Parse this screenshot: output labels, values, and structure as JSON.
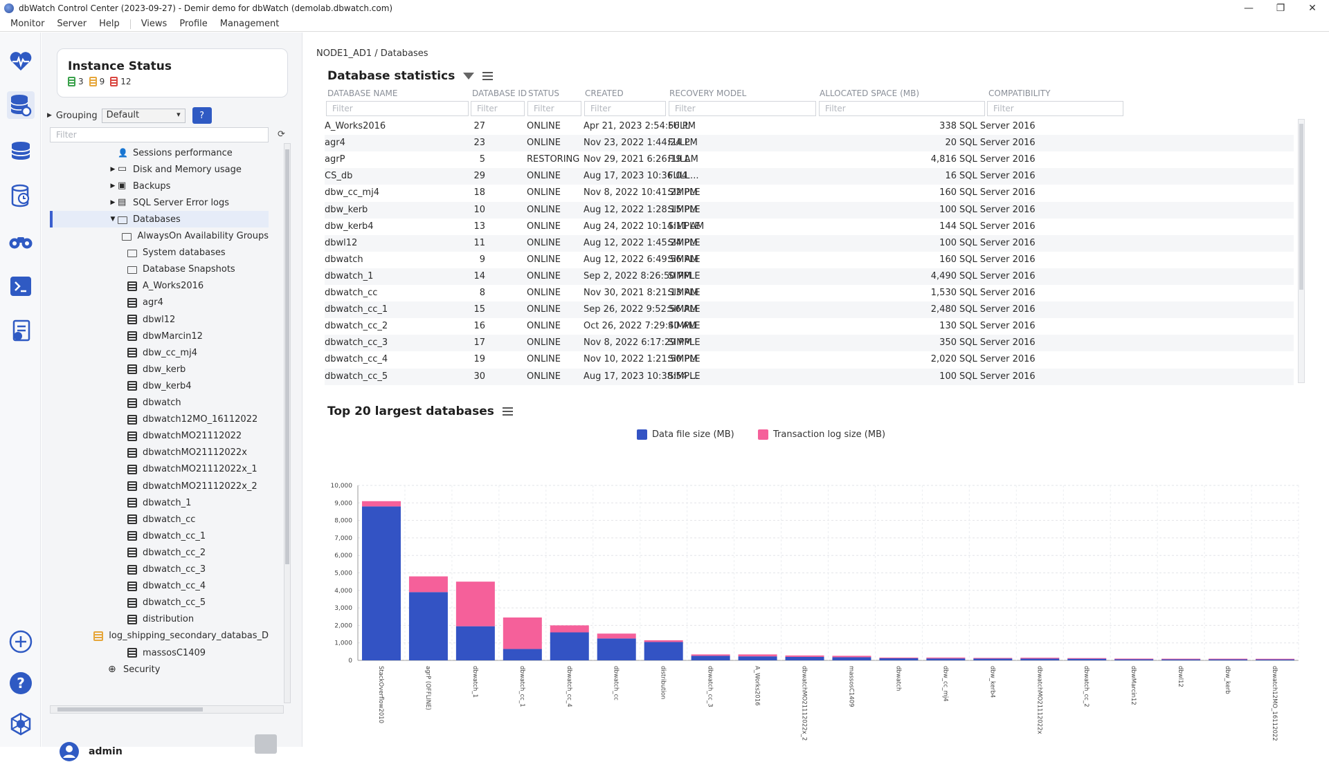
{
  "window": {
    "title": "dbWatch Control Center  (2023-09-27) - Demir demo for dbWatch (demolab.dbwatch.com)",
    "controls": [
      "—",
      "❐",
      "✕"
    ]
  },
  "menu": {
    "left": [
      "Monitor",
      "Server",
      "Help"
    ],
    "right": [
      "Views",
      "Profile",
      "Management"
    ]
  },
  "rail": [
    {
      "name": "monitor-heartbeat-icon",
      "active": false
    },
    {
      "name": "database-settings-icon",
      "active": true
    },
    {
      "name": "database-stack-icon",
      "active": false
    },
    {
      "name": "database-clock-icon",
      "active": false
    },
    {
      "name": "binoculars-icon",
      "active": false
    },
    {
      "name": "terminal-icon",
      "active": false
    },
    {
      "name": "report-icon",
      "active": false
    },
    {
      "name": "add-icon",
      "active": false
    },
    {
      "name": "help-icon",
      "active": false
    },
    {
      "name": "settings-hex-icon",
      "active": false
    }
  ],
  "instance_status": {
    "title": "Instance Status",
    "counts": [
      {
        "value": "3",
        "color": "#3aa14b"
      },
      {
        "value": "9",
        "color": "#e6a63a"
      },
      {
        "value": "12",
        "color": "#d9453f"
      }
    ]
  },
  "grouping": {
    "label": "Grouping",
    "value": "Default",
    "help": "?"
  },
  "tree_filter": {
    "placeholder": "Filter"
  },
  "tree": [
    {
      "label": "Sessions performance",
      "icon": "user",
      "indent": 1,
      "arrow": ""
    },
    {
      "label": "Disk and Memory usage",
      "icon": "disk",
      "indent": 1,
      "arrow": "▶"
    },
    {
      "label": "Backups",
      "icon": "backup",
      "indent": 1,
      "arrow": "▶"
    },
    {
      "label": "SQL Server Error logs",
      "icon": "log",
      "indent": 1,
      "arrow": "▶"
    },
    {
      "label": "Databases",
      "icon": "folder",
      "indent": 1,
      "arrow": "▼",
      "selected": true
    },
    {
      "label": "AlwaysOn Availability Groups",
      "icon": "folder",
      "indent": 2,
      "arrow": ""
    },
    {
      "label": "System databases",
      "icon": "folder",
      "indent": 2,
      "arrow": ""
    },
    {
      "label": "Database Snapshots",
      "icon": "folder",
      "indent": 2,
      "arrow": ""
    },
    {
      "label": "A_Works2016",
      "icon": "db",
      "indent": 2,
      "arrow": ""
    },
    {
      "label": "agr4",
      "icon": "db",
      "indent": 2,
      "arrow": ""
    },
    {
      "label": "dbwl12",
      "icon": "db",
      "indent": 2,
      "arrow": ""
    },
    {
      "label": "dbwMarcin12",
      "icon": "db",
      "indent": 2,
      "arrow": ""
    },
    {
      "label": "dbw_cc_mj4",
      "icon": "db",
      "indent": 2,
      "arrow": ""
    },
    {
      "label": "dbw_kerb",
      "icon": "db",
      "indent": 2,
      "arrow": ""
    },
    {
      "label": "dbw_kerb4",
      "icon": "db",
      "indent": 2,
      "arrow": ""
    },
    {
      "label": "dbwatch",
      "icon": "db",
      "indent": 2,
      "arrow": ""
    },
    {
      "label": "dbwatch12MO_16112022",
      "icon": "db",
      "indent": 2,
      "arrow": ""
    },
    {
      "label": "dbwatchMO21112022",
      "icon": "db",
      "indent": 2,
      "arrow": ""
    },
    {
      "label": "dbwatchMO21112022x",
      "icon": "db",
      "indent": 2,
      "arrow": ""
    },
    {
      "label": "dbwatchMO21112022x_1",
      "icon": "db",
      "indent": 2,
      "arrow": ""
    },
    {
      "label": "dbwatchMO21112022x_2",
      "icon": "db",
      "indent": 2,
      "arrow": ""
    },
    {
      "label": "dbwatch_1",
      "icon": "db",
      "indent": 2,
      "arrow": ""
    },
    {
      "label": "dbwatch_cc",
      "icon": "db",
      "indent": 2,
      "arrow": ""
    },
    {
      "label": "dbwatch_cc_1",
      "icon": "db",
      "indent": 2,
      "arrow": ""
    },
    {
      "label": "dbwatch_cc_2",
      "icon": "db",
      "indent": 2,
      "arrow": ""
    },
    {
      "label": "dbwatch_cc_3",
      "icon": "db",
      "indent": 2,
      "arrow": ""
    },
    {
      "label": "dbwatch_cc_4",
      "icon": "db",
      "indent": 2,
      "arrow": ""
    },
    {
      "label": "dbwatch_cc_5",
      "icon": "db",
      "indent": 2,
      "arrow": ""
    },
    {
      "label": "distribution",
      "icon": "db",
      "indent": 2,
      "arrow": ""
    },
    {
      "label": "log_shipping_secondary_databas_D",
      "icon": "db-orange",
      "indent": 2,
      "arrow": ""
    },
    {
      "label": "massosC1409",
      "icon": "db",
      "indent": 2,
      "arrow": ""
    },
    {
      "label": "Security",
      "icon": "globe",
      "indent": 0,
      "arrow": ""
    }
  ],
  "user": {
    "name": "admin"
  },
  "breadcrumb": "NODE1_AD1 / Databases",
  "stats": {
    "title": "Database statistics",
    "columns": [
      "DATABASE NAME",
      "DATABASE ID",
      "STATUS",
      "CREATED",
      "RECOVERY MODEL",
      "ALLOCATED SPACE (MB)",
      "COMPATIBILITY"
    ],
    "filter_placeholder": "Filter",
    "rows": [
      [
        "A_Works2016",
        "27",
        "ONLINE",
        "Apr 21, 2023 2:54:56 PM",
        "FULL",
        "338",
        "SQL Server 2016"
      ],
      [
        "agr4",
        "23",
        "ONLINE",
        "Nov 23, 2022 1:44:24 PM",
        "FULL",
        "20",
        "SQL Server 2016"
      ],
      [
        "agrP",
        "5",
        "RESTORING",
        "Nov 29, 2021 6:26:19 AM",
        "FULL",
        "4,816",
        "SQL Server 2016"
      ],
      [
        "CS_db",
        "29",
        "ONLINE",
        "Aug 17, 2023 10:36:04 ...",
        "FULL",
        "16",
        "SQL Server 2016"
      ],
      [
        "dbw_cc_mj4",
        "18",
        "ONLINE",
        "Nov 8, 2022 10:41:22 PM",
        "SIMPLE",
        "160",
        "SQL Server 2016"
      ],
      [
        "dbw_kerb",
        "10",
        "ONLINE",
        "Aug 12, 2022 1:28:15 PM",
        "SIMPLE",
        "100",
        "SQL Server 2016"
      ],
      [
        "dbw_kerb4",
        "13",
        "ONLINE",
        "Aug 24, 2022 10:14:11 AM",
        "SIMPLE",
        "144",
        "SQL Server 2016"
      ],
      [
        "dbwl12",
        "11",
        "ONLINE",
        "Aug 12, 2022 1:45:24 PM",
        "SIMPLE",
        "100",
        "SQL Server 2016"
      ],
      [
        "dbwatch",
        "9",
        "ONLINE",
        "Aug 12, 2022 6:49:56 AM",
        "SIMPLE",
        "160",
        "SQL Server 2016"
      ],
      [
        "dbwatch_1",
        "14",
        "ONLINE",
        "Sep 2, 2022 8:26:50 PM",
        "SIMPLE",
        "4,490",
        "SQL Server 2016"
      ],
      [
        "dbwatch_cc",
        "8",
        "ONLINE",
        "Nov 30, 2021 8:21:13 AM",
        "SIMPLE",
        "1,530",
        "SQL Server 2016"
      ],
      [
        "dbwatch_cc_1",
        "15",
        "ONLINE",
        "Sep 26, 2022 9:52:56 AM",
        "SIMPLE",
        "2,480",
        "SQL Server 2016"
      ],
      [
        "dbwatch_cc_2",
        "16",
        "ONLINE",
        "Oct 26, 2022 7:29:40 AM",
        "SIMPLE",
        "130",
        "SQL Server 2016"
      ],
      [
        "dbwatch_cc_3",
        "17",
        "ONLINE",
        "Nov 8, 2022 6:17:29 PM",
        "SIMPLE",
        "350",
        "SQL Server 2016"
      ],
      [
        "dbwatch_cc_4",
        "19",
        "ONLINE",
        "Nov 10, 2022 1:21:50 PM",
        "SIMPLE",
        "2,020",
        "SQL Server 2016"
      ],
      [
        "dbwatch_cc_5",
        "30",
        "ONLINE",
        "Aug 17, 2023 10:38:54 ...",
        "SIMPLE",
        "100",
        "SQL Server 2016"
      ]
    ]
  },
  "chart_section": {
    "title": "Top 20 largest databases"
  },
  "colors": {
    "data": "#3353c4",
    "log": "#f5609a",
    "accent": "#2f5ac3"
  },
  "chart_data": {
    "type": "bar",
    "stacked": true,
    "title": "Top 20 largest databases",
    "categories": [
      "StackOverflow2010",
      "agrP (OFFLINE)",
      "dbwatch_1",
      "dbwatch_cc_1",
      "dbwatch_cc_4",
      "dbwatch_cc",
      "distribution",
      "dbwatch_cc_3",
      "A_Works2016",
      "dbwatchMO21112022x_2",
      "massosC1409",
      "dbwatch",
      "dbw_cc_mj4",
      "dbw_kerb4",
      "dbwatchMO21112022x",
      "dbwatch_cc_2",
      "dbwMarcin12",
      "dbwl12",
      "dbw_kerb",
      "dbwatch12MO_16112022"
    ],
    "series": [
      {
        "name": "Data file size (MB)",
        "values": [
          8800,
          3900,
          1950,
          650,
          1600,
          1250,
          1050,
          260,
          230,
          200,
          180,
          120,
          110,
          100,
          100,
          95,
          80,
          70,
          70,
          65
        ]
      },
      {
        "name": "Transaction log size (MB)",
        "values": [
          300,
          900,
          2550,
          1800,
          400,
          280,
          100,
          80,
          110,
          80,
          80,
          40,
          50,
          40,
          50,
          35,
          20,
          25,
          25,
          25
        ]
      }
    ],
    "yticks": [
      "0",
      "1,000",
      "2,000",
      "3,000",
      "4,000",
      "5,000",
      "6,000",
      "7,000",
      "8,000",
      "9,000",
      "10,000"
    ],
    "ylim": [
      0,
      10000
    ],
    "grid": true,
    "legend": "top"
  }
}
